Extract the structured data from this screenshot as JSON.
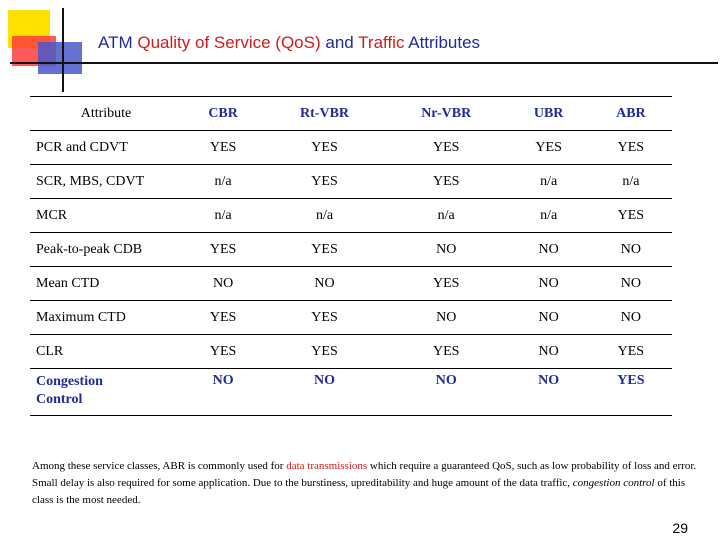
{
  "title": {
    "prefix": "ATM ",
    "qos": "Quality of Service (QoS)",
    "and": " and ",
    "traffic": "Traffic",
    "suffix": " Attributes"
  },
  "table": {
    "header": [
      "Attribute",
      "CBR",
      "Rt-VBR",
      "Nr-VBR",
      "UBR",
      "ABR"
    ],
    "rows": [
      {
        "attribute": "PCR and CDVT",
        "values": [
          "YES",
          "YES",
          "YES",
          "YES",
          "YES"
        ]
      },
      {
        "attribute": "SCR, MBS, CDVT",
        "values": [
          "n/a",
          "YES",
          "YES",
          "n/a",
          "n/a"
        ]
      },
      {
        "attribute": "MCR",
        "values": [
          "n/a",
          "n/a",
          "n/a",
          "n/a",
          "YES"
        ]
      },
      {
        "attribute": "Peak-to-peak CDB",
        "values": [
          "YES",
          "YES",
          "NO",
          "NO",
          "NO"
        ]
      },
      {
        "attribute": "Mean CTD",
        "values": [
          "NO",
          "NO",
          "YES",
          "NO",
          "NO"
        ]
      },
      {
        "attribute": "Maximum CTD",
        "values": [
          "YES",
          "YES",
          "NO",
          "NO",
          "NO"
        ]
      },
      {
        "attribute": "CLR",
        "values": [
          "YES",
          "YES",
          "YES",
          "NO",
          "YES"
        ]
      }
    ],
    "congestion": {
      "attribute_line1": "Congestion",
      "attribute_line2": "Control",
      "values": [
        "NO",
        "NO",
        "NO",
        "NO",
        "YES"
      ]
    }
  },
  "note": {
    "part1": "Among these service classes, ABR is commonly used for ",
    "highlight": "data transmissions",
    "part2": " which require a guaranteed QoS, such as low probability of loss and error. Small delay is also required for some application. Due to the burstiness, upreditability and huge amount of the data traffic, ",
    "emph": "congestion control",
    "part3": " of this class is the most needed."
  },
  "page_number": "29",
  "colors": {
    "accent": "#1f2a9c",
    "highlight": "#d21a1a"
  }
}
